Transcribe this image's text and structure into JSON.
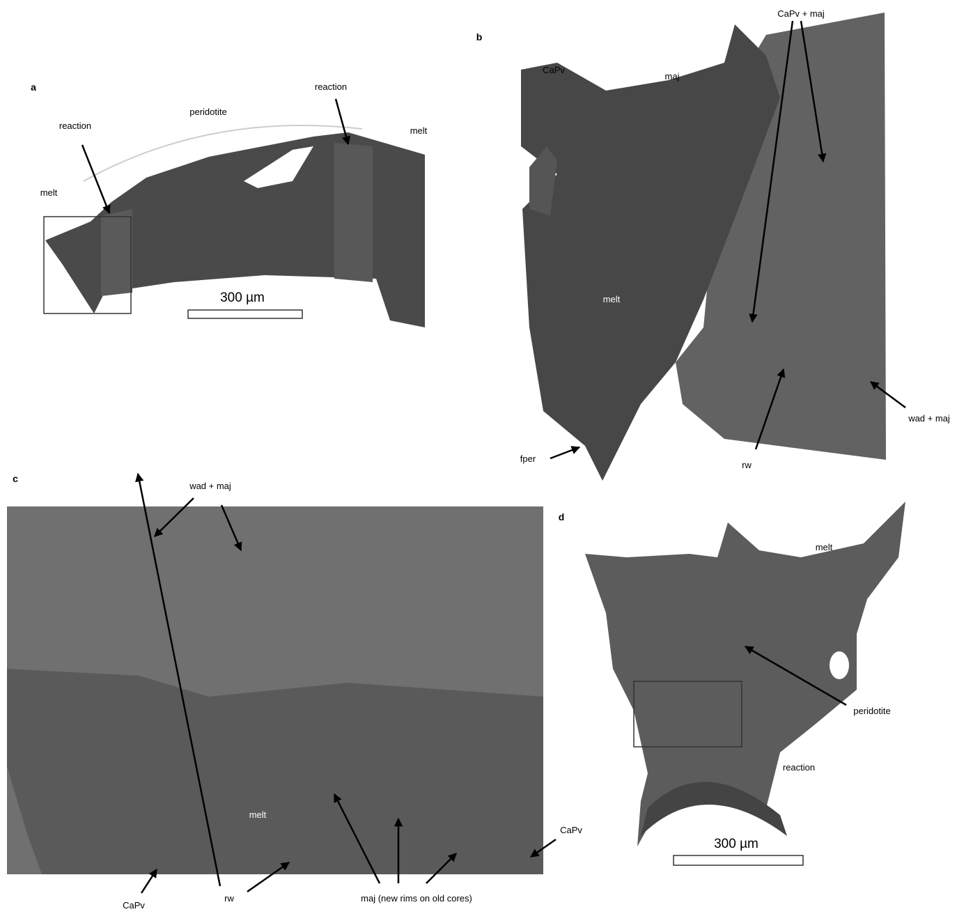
{
  "panels": [
    {
      "letter": "a",
      "labels": [
        "peridotite",
        "reaction",
        "reaction",
        "melt",
        "melt"
      ],
      "scale_bar": "300 µm"
    },
    {
      "letter": "b",
      "labels": [
        "CaPv",
        "maj",
        "CaPv + maj",
        "melt",
        "fper",
        "rw",
        "wad + maj"
      ]
    },
    {
      "letter": "c",
      "labels": [
        "wad + maj",
        "melt",
        "CaPv",
        "rw",
        "maj (new rims on old cores)",
        "CaPv"
      ]
    },
    {
      "letter": "d",
      "labels": [
        "melt",
        "peridotite",
        "reaction"
      ],
      "scale_bar": "300 µm"
    }
  ]
}
